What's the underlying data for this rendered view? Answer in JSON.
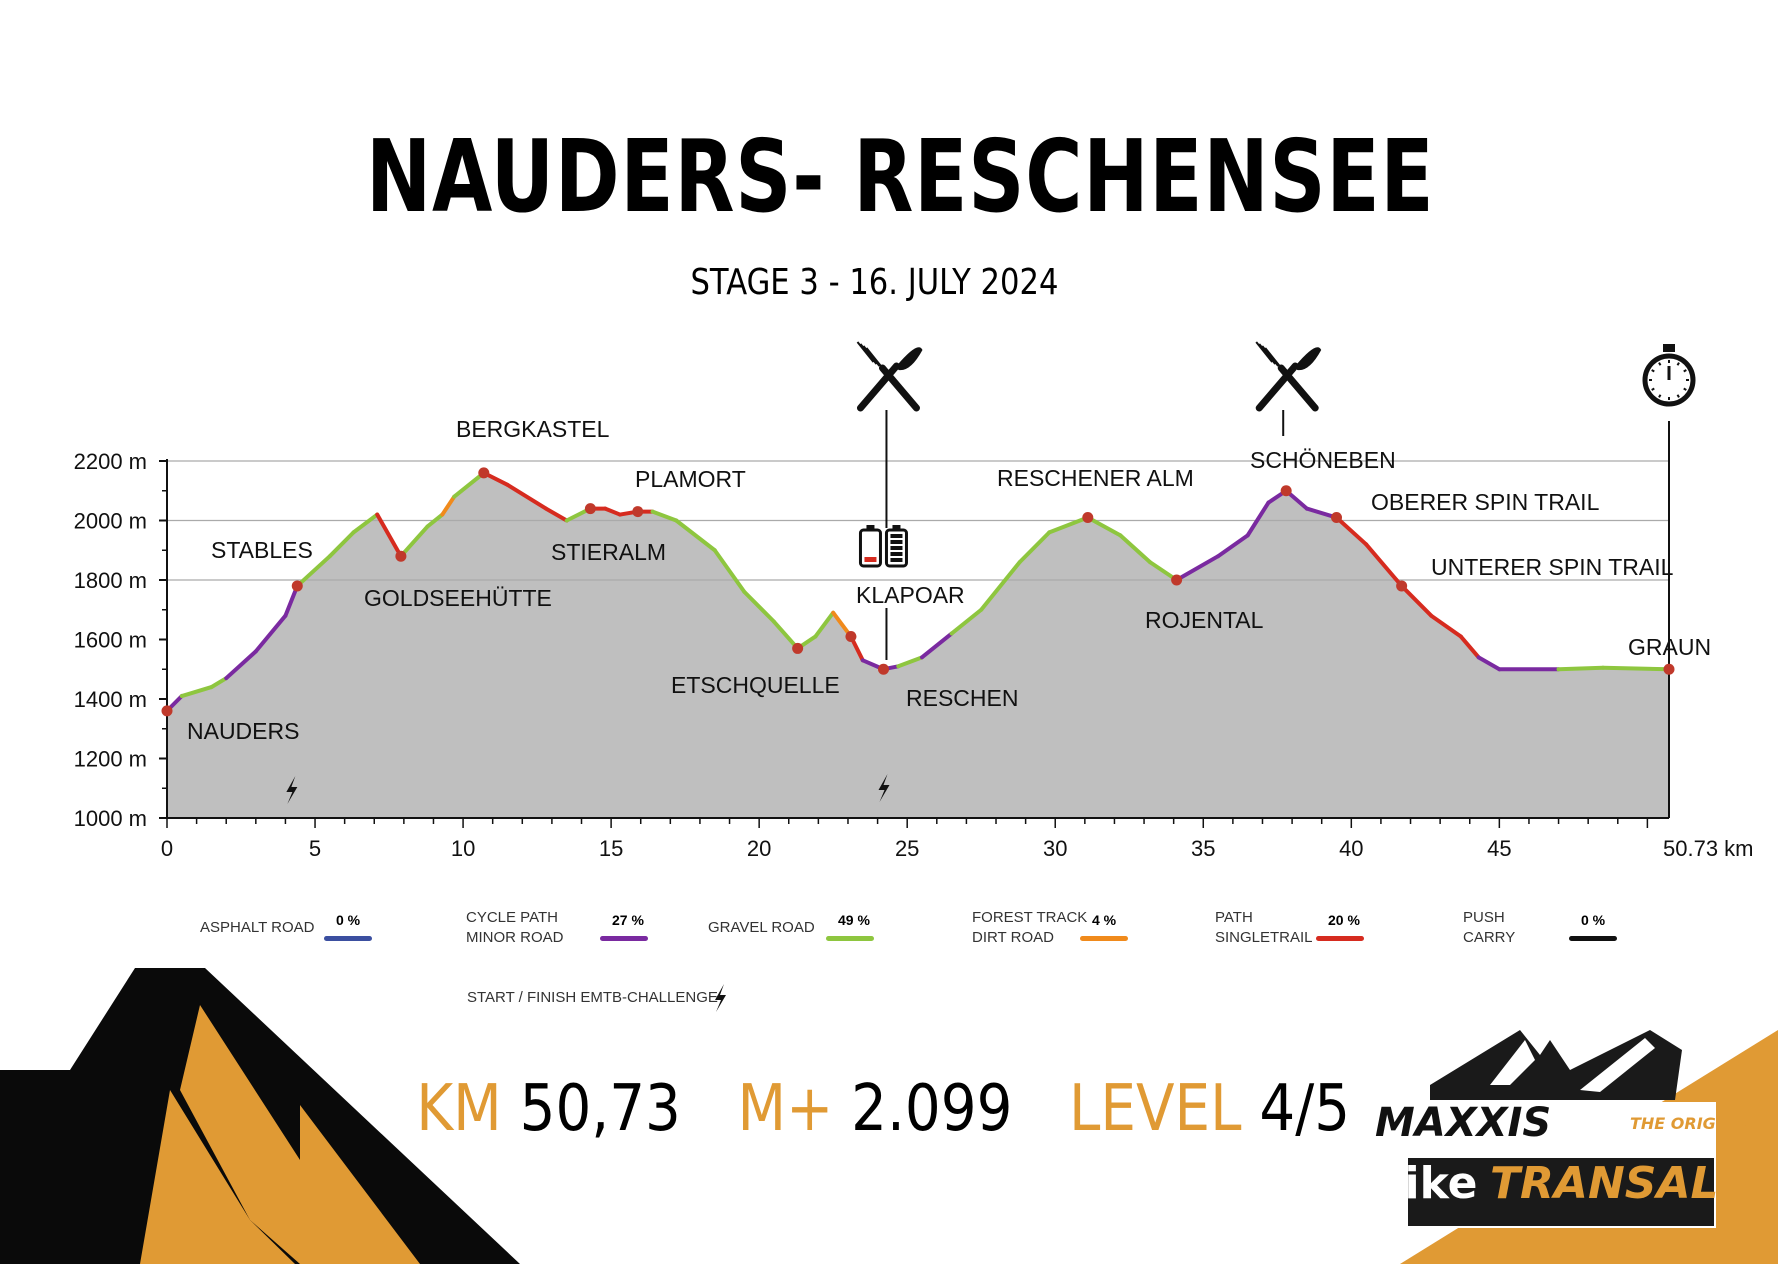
{
  "title": "NAUDERS- RESCHENSEE",
  "subtitle": "STAGE 3 - 16. JULY 2024",
  "chart_data": {
    "type": "area",
    "xlabel": "km",
    "ylabel": "m",
    "xlim": [
      0,
      50.73
    ],
    "ylim": [
      1000,
      2200
    ],
    "x_ticks": [
      0,
      5,
      10,
      15,
      20,
      25,
      30,
      35,
      40,
      45,
      50.73
    ],
    "x_tick_labels": [
      "0",
      "5",
      "10",
      "15",
      "20",
      "25",
      "30",
      "35",
      "40",
      "45",
      "50.73 km"
    ],
    "y_ticks": [
      1000,
      1200,
      1400,
      1600,
      1800,
      2000,
      2200
    ],
    "y_tick_labels": [
      "1000 m",
      "1200 m",
      "1400 m",
      "1600 m",
      "1800 m",
      "2000 m",
      "2200 m"
    ],
    "grid_lines_y": [
      1800,
      2000,
      2200
    ],
    "profile": [
      [
        0,
        1360,
        "cycle"
      ],
      [
        0.5,
        1410,
        "gravel"
      ],
      [
        1.5,
        1440,
        "gravel"
      ],
      [
        2,
        1470,
        "cycle"
      ],
      [
        3,
        1560,
        "cycle"
      ],
      [
        4,
        1680,
        "cycle"
      ],
      [
        4.4,
        1780,
        "gravel"
      ],
      [
        5.5,
        1880,
        "gravel"
      ],
      [
        6.3,
        1960,
        "gravel"
      ],
      [
        7.1,
        2020,
        "trail"
      ],
      [
        7.9,
        1880,
        "gravel"
      ],
      [
        8.8,
        1980,
        "gravel"
      ],
      [
        9.3,
        2020,
        "forest"
      ],
      [
        9.7,
        2080,
        "gravel"
      ],
      [
        10.7,
        2160,
        "trail"
      ],
      [
        11.5,
        2120,
        "trail"
      ],
      [
        12.8,
        2040,
        "trail"
      ],
      [
        13.5,
        2000,
        "gravel"
      ],
      [
        14.3,
        2040,
        "trail"
      ],
      [
        14.8,
        2040,
        "trail"
      ],
      [
        15.3,
        2020,
        "trail"
      ],
      [
        15.9,
        2030,
        "trail"
      ],
      [
        16.4,
        2030,
        "gravel"
      ],
      [
        17.2,
        2000,
        "gravel"
      ],
      [
        18.5,
        1900,
        "gravel"
      ],
      [
        19.5,
        1760,
        "gravel"
      ],
      [
        20.5,
        1660,
        "gravel"
      ],
      [
        21.3,
        1570,
        "gravel"
      ],
      [
        21.9,
        1610,
        "gravel"
      ],
      [
        22.5,
        1690,
        "forest"
      ],
      [
        23.1,
        1610,
        "trail"
      ],
      [
        23.5,
        1530,
        "cycle"
      ],
      [
        24.2,
        1500,
        "cycle"
      ],
      [
        24.7,
        1510,
        "gravel"
      ],
      [
        25.5,
        1540,
        "cycle"
      ],
      [
        26.5,
        1620,
        "gravel"
      ],
      [
        27.5,
        1700,
        "gravel"
      ],
      [
        28.8,
        1860,
        "gravel"
      ],
      [
        29.8,
        1960,
        "gravel"
      ],
      [
        31.1,
        2010,
        "gravel"
      ],
      [
        32.2,
        1950,
        "gravel"
      ],
      [
        33.2,
        1860,
        "gravel"
      ],
      [
        34.1,
        1800,
        "cycle"
      ],
      [
        35.5,
        1880,
        "cycle"
      ],
      [
        36.5,
        1950,
        "cycle"
      ],
      [
        37.2,
        2060,
        "cycle"
      ],
      [
        37.8,
        2100,
        "cycle"
      ],
      [
        38.5,
        2040,
        "cycle"
      ],
      [
        39.5,
        2010,
        "trail"
      ],
      [
        40.5,
        1920,
        "trail"
      ],
      [
        41.7,
        1780,
        "trail"
      ],
      [
        42.7,
        1680,
        "trail"
      ],
      [
        43.7,
        1610,
        "trail"
      ],
      [
        44.3,
        1540,
        "cycle"
      ],
      [
        45.0,
        1500,
        "cycle"
      ],
      [
        47.0,
        1500,
        "gravel"
      ],
      [
        48.5,
        1505,
        "gravel"
      ],
      [
        50.73,
        1500,
        "gravel"
      ]
    ],
    "waypoints": [
      {
        "name": "NAUDERS",
        "km": 0,
        "alt": 1360
      },
      {
        "name": "STABLES",
        "km": 4.4,
        "alt": 1780
      },
      {
        "name": "GOLDSEEHÜTTE",
        "km": 7.9,
        "alt": 1880
      },
      {
        "name": "BERGKASTEL",
        "km": 10.7,
        "alt": 2160
      },
      {
        "name": "STIERALM",
        "km": 14.3,
        "alt": 2040
      },
      {
        "name": "PLAMORT",
        "km": 15.9,
        "alt": 2030
      },
      {
        "name": "ETSCHQUELLE",
        "km": 21.3,
        "alt": 1570
      },
      {
        "name": "KLAPOAR",
        "km": 23.1,
        "alt": 1610
      },
      {
        "name": "RESCHEN",
        "km": 24.2,
        "alt": 1500
      },
      {
        "name": "RESCHENER ALM",
        "km": 31.1,
        "alt": 2010
      },
      {
        "name": "ROJENTAL",
        "km": 34.1,
        "alt": 1800
      },
      {
        "name": "SCHÖNEBEN",
        "km": 37.8,
        "alt": 2100
      },
      {
        "name": "OBERER SPIN TRAIL",
        "km": 39.5,
        "alt": 2010
      },
      {
        "name": "UNTERER SPIN TRAIL",
        "km": 41.7,
        "alt": 1780
      },
      {
        "name": "GRAUN",
        "km": 50.73,
        "alt": 1500
      }
    ],
    "markers": [
      {
        "type": "food-icon",
        "km": 24.3
      },
      {
        "type": "food-icon",
        "km": 37.7
      },
      {
        "type": "battery-swap-icon",
        "km": 24.2
      },
      {
        "type": "stopwatch-icon",
        "km": 50.73
      },
      {
        "type": "lightning-icon",
        "km": 4.2
      },
      {
        "type": "lightning-icon",
        "km": 24.2
      }
    ],
    "legend": [
      {
        "label": "ASPHALT ROAD",
        "key": "asphalt",
        "pct": "0 %",
        "color": "#3b4fa0"
      },
      {
        "label": "CYCLE PATH\nMINOR ROAD",
        "key": "cycle",
        "pct": "27 %",
        "color": "#7a2aa0"
      },
      {
        "label": "GRAVEL ROAD",
        "key": "gravel",
        "pct": "49 %",
        "color": "#8ec63f"
      },
      {
        "label": "FOREST TRACK\nDIRT ROAD",
        "key": "forest",
        "pct": "4 %",
        "color": "#f08a1c"
      },
      {
        "label": "PATH\nSINGLETRAIL",
        "key": "trail",
        "pct": "20 %",
        "color": "#d62b1f"
      },
      {
        "label": "PUSH\nCARRY",
        "key": "push",
        "pct": "0 %",
        "color": "#111111"
      }
    ],
    "emtb_label": "START / FINISH EMTB-CHALLENGE"
  },
  "stats": {
    "km_label": "KM",
    "km_value": "50,73",
    "elev_label": "M+",
    "elev_value": "2.099",
    "level_label": "LEVEL",
    "level_value": "4/5"
  },
  "logo": {
    "brand": "MAXXIS",
    "tag": "THE ORIGINAL",
    "name1": "bike",
    "name2": "TRANSALP"
  },
  "colors": {
    "accent": "#e09a34",
    "area": "#bfbfbf",
    "waypoint": "#c0392b",
    "black": "#111111"
  }
}
